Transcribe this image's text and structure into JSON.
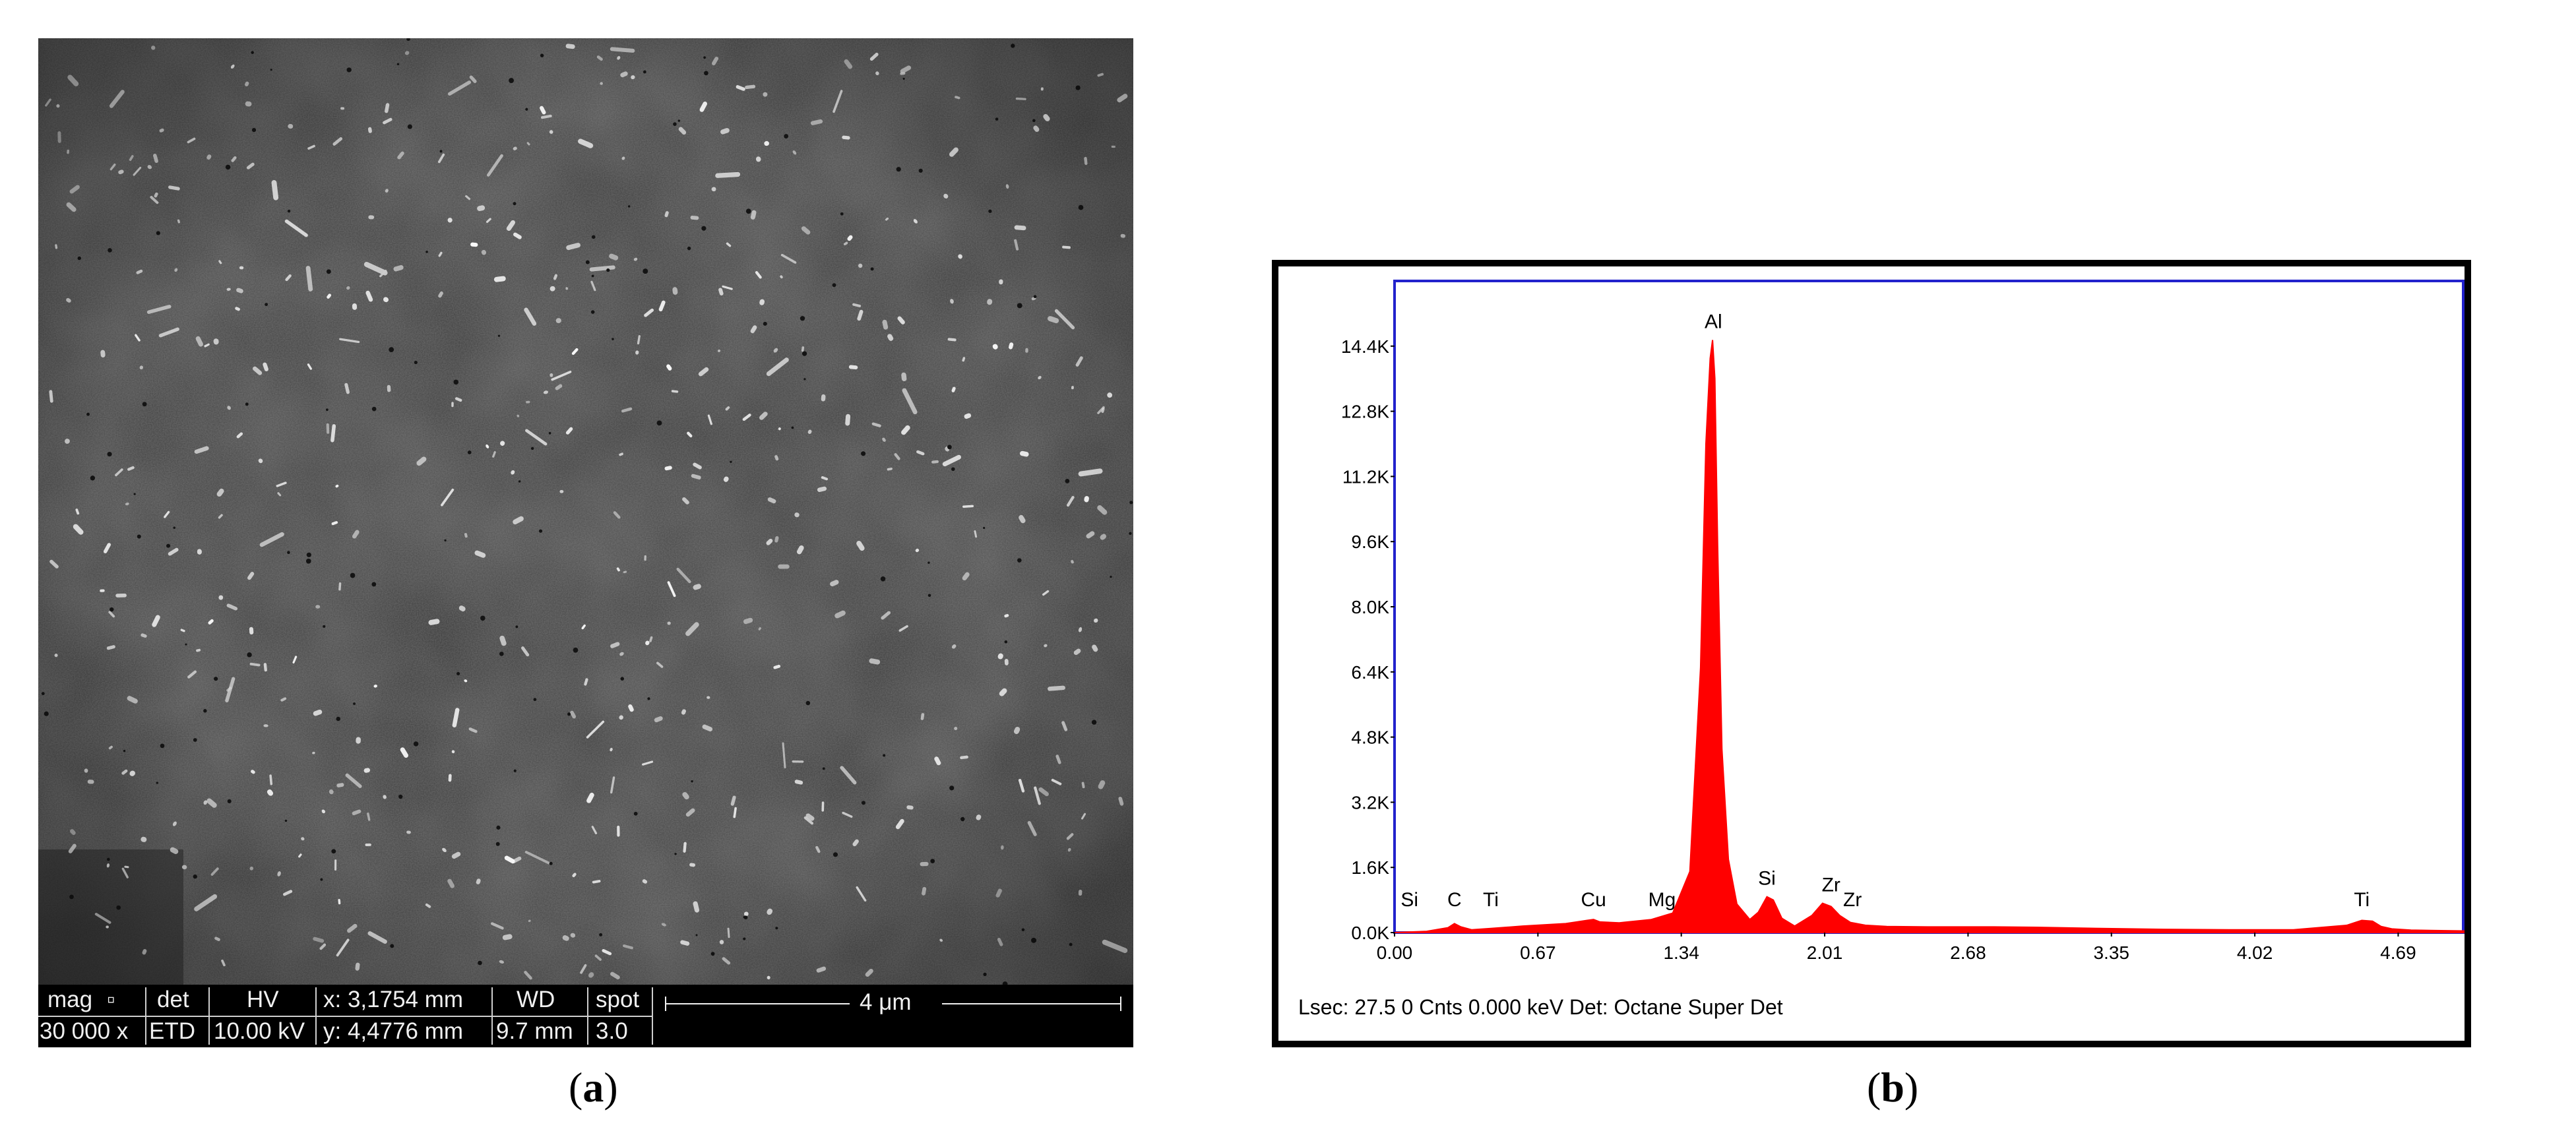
{
  "panels": {
    "a_label": "a",
    "b_label": "b"
  },
  "sem": {
    "databar": {
      "mag_label": "mag",
      "det_label": "det",
      "hv_label": "HV",
      "x_text": "x: 3,1754 mm",
      "wd_label": "WD",
      "spot_label": "spot",
      "mag_value": "30 000 x",
      "det_value": "ETD",
      "hv_value": "10.00 kV",
      "y_text": "y: 4,4776 mm",
      "wd_value": "9.7 mm",
      "spot_value": "3.0",
      "scale_label": "4 μm"
    }
  },
  "chart_data": {
    "type": "area",
    "title": "",
    "xlabel": "",
    "ylabel": "",
    "x_ticks": [
      "0.00",
      "0.67",
      "1.34",
      "2.01",
      "2.68",
      "3.35",
      "4.02",
      "4.69"
    ],
    "y_ticks": [
      "0.0K",
      "1.6K",
      "3.2K",
      "4.8K",
      "6.4K",
      "8.0K",
      "9.6K",
      "11.2K",
      "12.8K",
      "14.4K"
    ],
    "xlim": [
      0,
      5.0
    ],
    "ylim": [
      0,
      16000
    ],
    "grid": false,
    "colors": {
      "spectrum": "#ff0000",
      "frame": "#2222cc"
    },
    "series": [
      {
        "x": [
          0.0,
          0.15,
          0.25,
          0.28,
          0.31,
          0.36,
          0.45,
          0.6,
          0.8,
          0.9,
          0.93,
          0.96,
          1.05,
          1.2,
          1.3,
          1.38,
          1.43,
          1.455,
          1.475,
          1.486,
          1.497,
          1.51,
          1.53,
          1.56,
          1.6,
          1.66,
          1.7,
          1.74,
          1.77,
          1.81,
          1.87,
          1.95,
          2.0,
          2.04,
          2.08,
          2.13,
          2.2,
          2.3,
          2.5,
          2.8,
          3.0,
          3.3,
          3.6,
          3.9,
          4.2,
          4.45,
          4.52,
          4.57,
          4.61,
          4.66,
          4.75,
          5.0
        ],
        "y": [
          0,
          30,
          120,
          220,
          140,
          70,
          100,
          160,
          220,
          300,
          320,
          260,
          240,
          320,
          480,
          1500,
          6500,
          12000,
          14100,
          14550,
          13600,
          9500,
          4500,
          1800,
          700,
          320,
          500,
          880,
          800,
          350,
          160,
          420,
          720,
          640,
          420,
          250,
          180,
          150,
          140,
          140,
          130,
          100,
          80,
          70,
          70,
          180,
          300,
          280,
          150,
          90,
          60,
          40
        ]
      }
    ],
    "annotations": [
      {
        "text": "Al",
        "x": 1.49,
        "y": 14550
      },
      {
        "text": "Si",
        "x": 0.07,
        "y": 0
      },
      {
        "text": "C",
        "x": 0.28,
        "y": 220
      },
      {
        "text": "Ti",
        "x": 0.45,
        "y": 100
      },
      {
        "text": "Cu",
        "x": 0.93,
        "y": 320
      },
      {
        "text": "Mg",
        "x": 1.25,
        "y": 320
      },
      {
        "text": "Si",
        "x": 1.74,
        "y": 880
      },
      {
        "text": "Zr",
        "x": 2.04,
        "y": 720
      },
      {
        "text": "Zr",
        "x": 2.14,
        "y": 250
      },
      {
        "text": "Ti",
        "x": 4.52,
        "y": 300
      }
    ],
    "status_text": "Lsec: 27.5 0 Cnts  0.000 keV Det: Octane Super Det"
  }
}
